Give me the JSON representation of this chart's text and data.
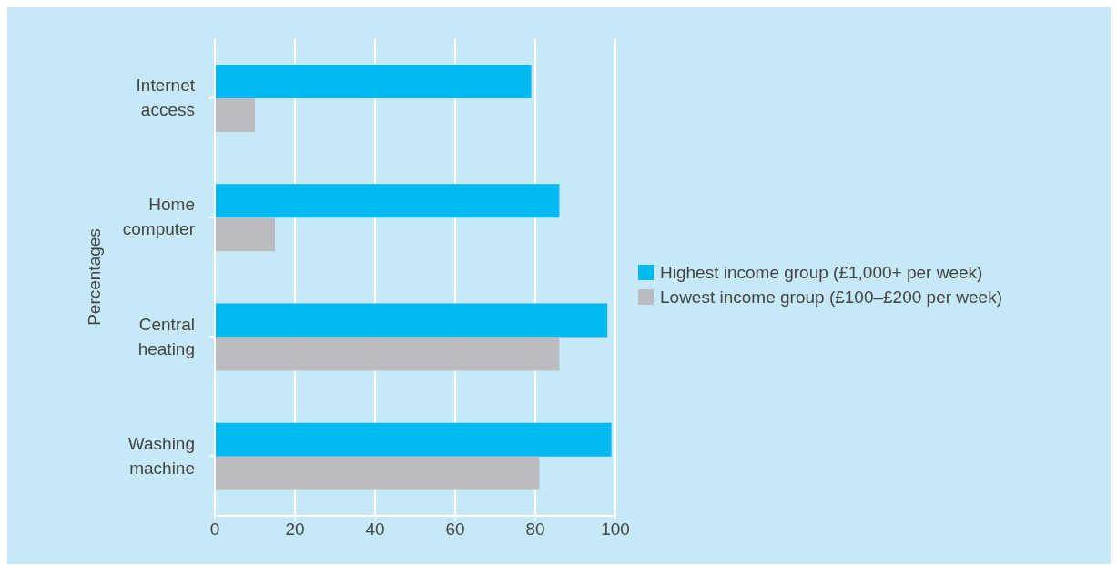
{
  "chart_data": {
    "type": "bar",
    "orientation": "horizontal",
    "ylabel": "Percentages",
    "categories": [
      "Internet access",
      "Home computer",
      "Central heating",
      "Washing machine"
    ],
    "series": [
      {
        "name": "Highest income group (£1,000+ per week)",
        "color": "#00b9f0",
        "values": [
          79,
          86,
          98,
          99
        ]
      },
      {
        "name": "Lowest income group (£100–£200 per week)",
        "color": "#bbbcc0",
        "values": [
          10,
          15,
          86,
          81
        ]
      }
    ],
    "xlim": [
      0,
      100
    ],
    "xticks": [
      0,
      20,
      40,
      60,
      80,
      100
    ],
    "grid": "x",
    "legend": "right"
  }
}
